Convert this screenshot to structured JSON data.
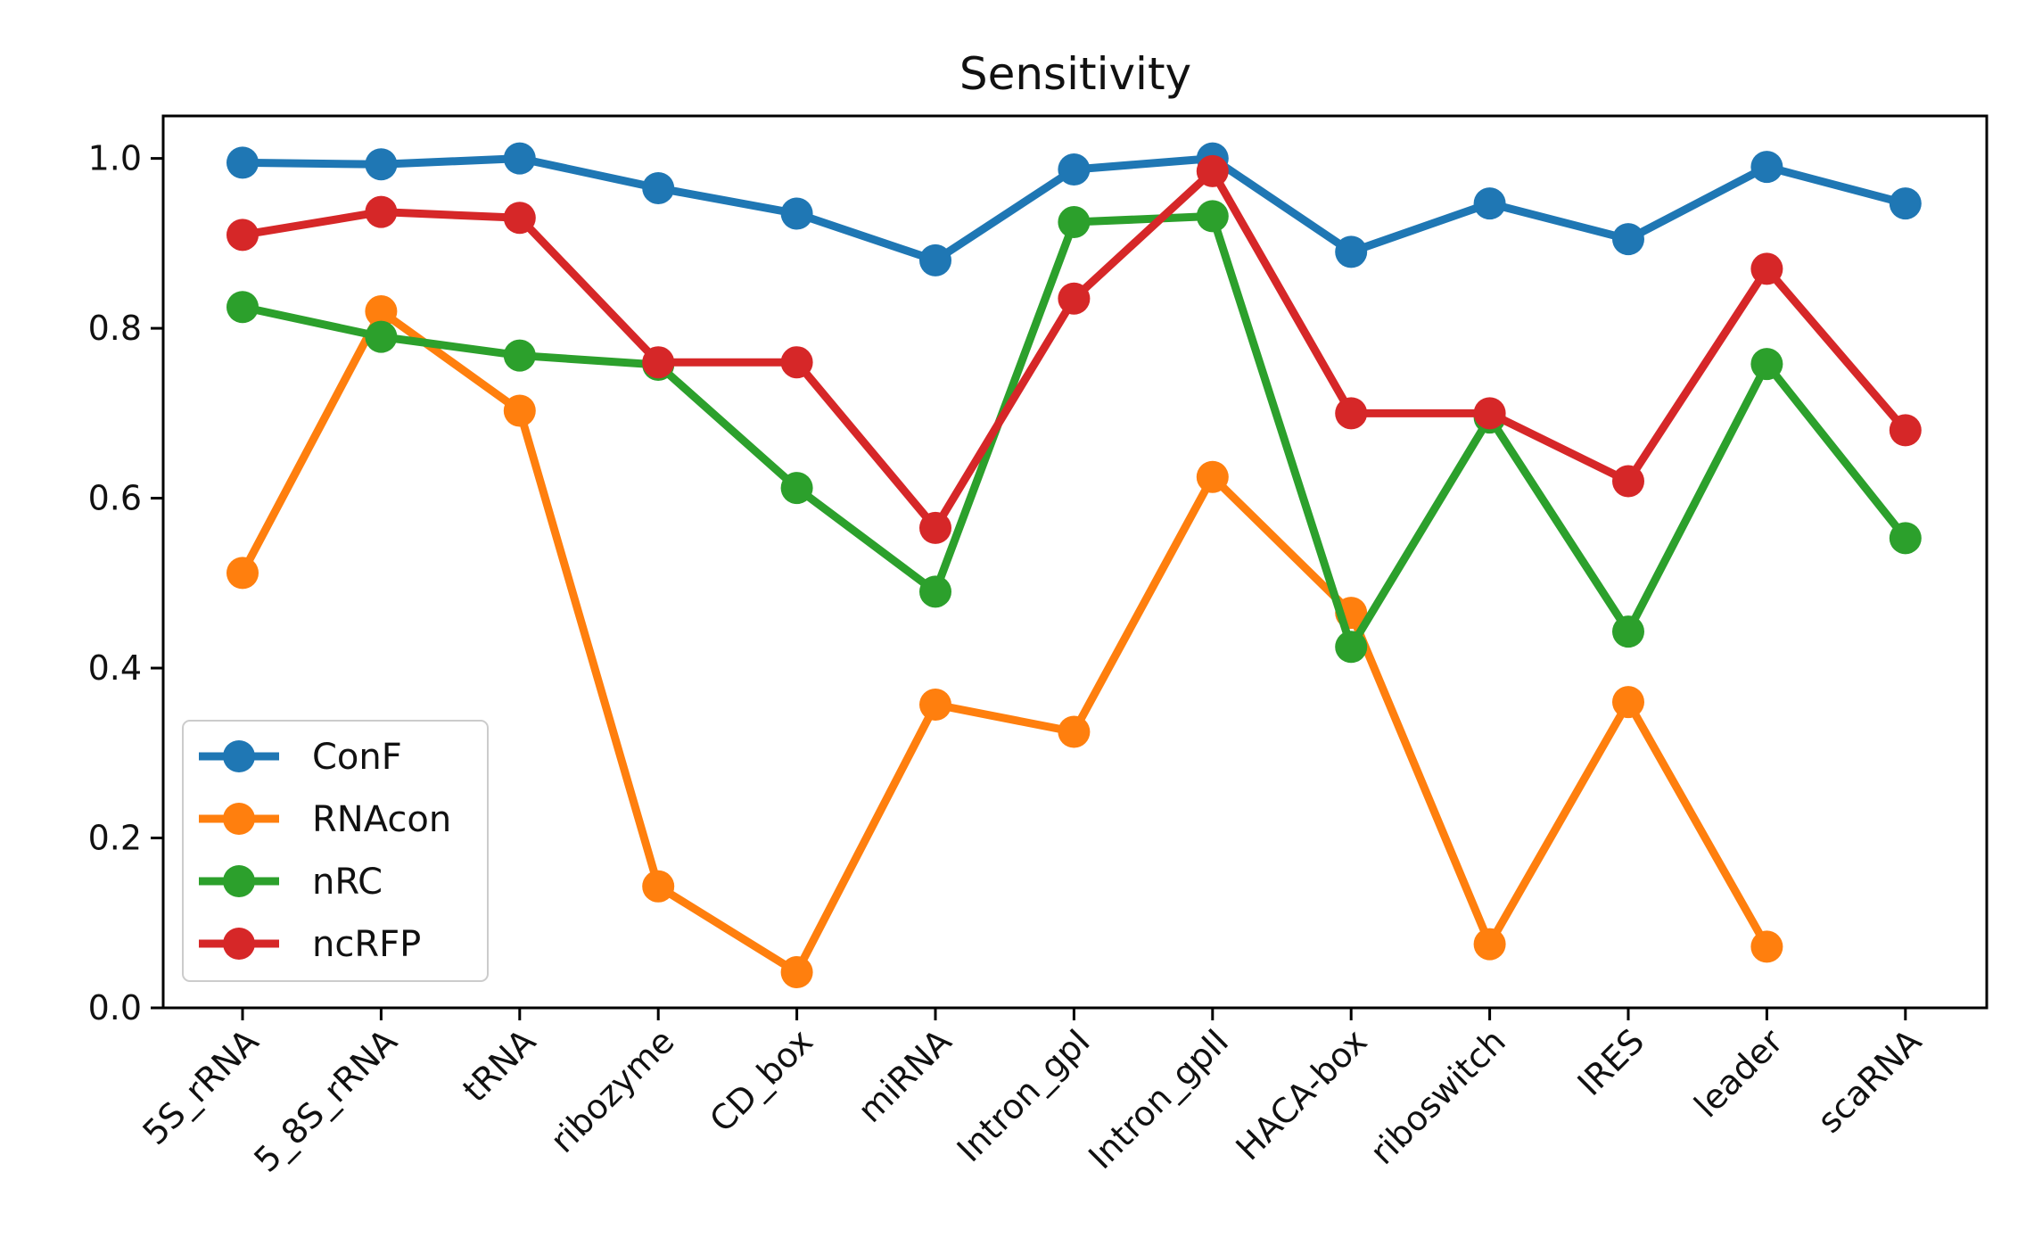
{
  "chart_data": {
    "type": "line",
    "title": "Sensitivity",
    "xlabel": "",
    "ylabel": "",
    "ylim": [
      0.0,
      1.05
    ],
    "yticks": [
      0.0,
      0.2,
      0.4,
      0.6,
      0.8,
      1.0
    ],
    "ytick_labels": [
      "0.0",
      "0.2",
      "0.4",
      "0.6",
      "0.8",
      "1.0"
    ],
    "categories": [
      "5S_rRNA",
      "5_8S_rRNA",
      "tRNA",
      "ribozyme",
      "CD_box",
      "miRNA",
      "Intron_gpI",
      "Intron_gpII",
      "HACA-box",
      "riboswitch",
      "IRES",
      "leader",
      "scaRNA"
    ],
    "legend_position": "lower-left",
    "series": [
      {
        "name": "ConF",
        "color": "#1f77b4",
        "values": [
          0.995,
          0.993,
          1.0,
          0.965,
          0.935,
          0.88,
          0.987,
          1.0,
          0.89,
          0.947,
          0.905,
          0.99,
          0.947
        ]
      },
      {
        "name": "RNAcon",
        "color": "#ff7f0e",
        "values": [
          0.512,
          0.82,
          0.703,
          0.143,
          0.042,
          0.357,
          0.325,
          0.625,
          0.465,
          0.075,
          0.36,
          0.072,
          null
        ]
      },
      {
        "name": "nRC",
        "color": "#2ca02c",
        "values": [
          0.825,
          0.79,
          0.768,
          0.757,
          0.612,
          0.49,
          0.925,
          0.932,
          0.425,
          0.695,
          0.443,
          0.758,
          0.553
        ]
      },
      {
        "name": "ncRFP",
        "color": "#d62728",
        "values": [
          0.91,
          0.937,
          0.93,
          0.76,
          0.76,
          0.565,
          0.835,
          0.985,
          0.7,
          0.7,
          0.62,
          0.87,
          0.68
        ]
      }
    ]
  }
}
